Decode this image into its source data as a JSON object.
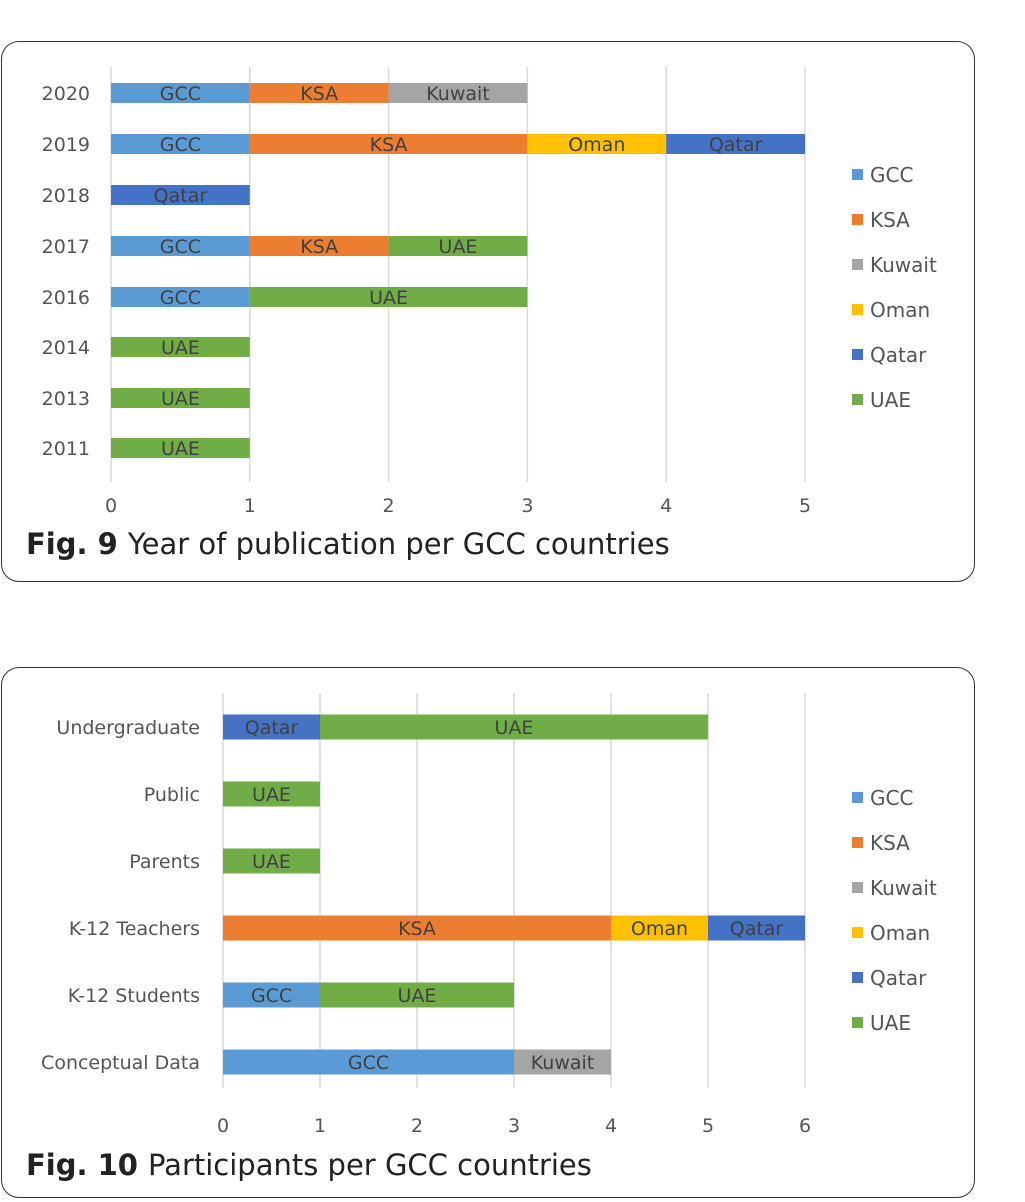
{
  "figures": [
    {
      "fig_label": "Fig. 9",
      "caption": "Year of publication per GCC countries"
    },
    {
      "fig_label": "Fig. 10",
      "caption": "Participants per GCC countries"
    }
  ],
  "colors": {
    "GCC": "#5b9bd5",
    "KSA": "#ed7d31",
    "Kuwait": "#a5a5a5",
    "Oman": "#ffc000",
    "Qatar": "#4472c4",
    "UAE": "#70ad47"
  },
  "chart_data": [
    {
      "type": "bar",
      "orientation": "horizontal",
      "stacked": true,
      "categories": [
        "2020",
        "2019",
        "2018",
        "2017",
        "2016",
        "2014",
        "2013",
        "2011"
      ],
      "series": [
        {
          "name": "GCC",
          "values": [
            1,
            1,
            0,
            1,
            1,
            0,
            0,
            0
          ]
        },
        {
          "name": "KSA",
          "values": [
            1,
            2,
            0,
            1,
            0,
            0,
            0,
            0
          ]
        },
        {
          "name": "Kuwait",
          "values": [
            1,
            0,
            0,
            0,
            0,
            0,
            0,
            0
          ]
        },
        {
          "name": "Oman",
          "values": [
            0,
            1,
            0,
            0,
            0,
            0,
            0,
            0
          ]
        },
        {
          "name": "Qatar",
          "values": [
            0,
            1,
            1,
            0,
            0,
            0,
            0,
            0
          ]
        },
        {
          "name": "UAE",
          "values": [
            0,
            0,
            0,
            1,
            2,
            1,
            1,
            1
          ]
        }
      ],
      "xlim": [
        0,
        5
      ],
      "xticks": [
        0,
        1,
        2,
        3,
        4,
        5
      ],
      "title": "",
      "xlabel": "",
      "ylabel": "",
      "legend": "right",
      "grid": "vertical"
    },
    {
      "type": "bar",
      "orientation": "horizontal",
      "stacked": true,
      "categories": [
        "Undergraduate",
        "Public",
        "Parents",
        "K-12 Teachers",
        "K-12 Students",
        "Conceptual Data"
      ],
      "series": [
        {
          "name": "GCC",
          "values": [
            0,
            0,
            0,
            0,
            1,
            3
          ]
        },
        {
          "name": "KSA",
          "values": [
            0,
            0,
            0,
            4,
            0,
            0
          ]
        },
        {
          "name": "Kuwait",
          "values": [
            0,
            0,
            0,
            0,
            0,
            1
          ]
        },
        {
          "name": "Oman",
          "values": [
            0,
            0,
            0,
            1,
            0,
            0
          ]
        },
        {
          "name": "Qatar",
          "values": [
            1,
            0,
            0,
            1,
            0,
            0
          ]
        },
        {
          "name": "UAE",
          "values": [
            4,
            1,
            1,
            0,
            2,
            0
          ]
        }
      ],
      "xlim": [
        0,
        6
      ],
      "xticks": [
        0,
        1,
        2,
        3,
        4,
        5,
        6
      ],
      "title": "",
      "xlabel": "",
      "ylabel": "",
      "legend": "right",
      "grid": "vertical"
    }
  ]
}
